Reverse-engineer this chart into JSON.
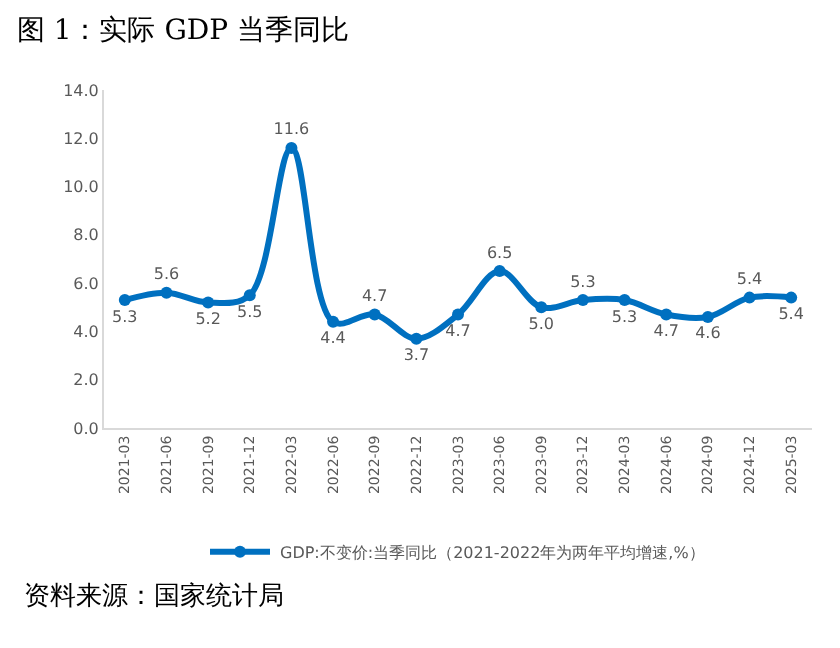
{
  "chart_data": {
    "type": "line",
    "title": "图 1：实际 GDP 当季同比",
    "categories": [
      "2021-03",
      "2021-06",
      "2021-09",
      "2021-12",
      "2022-03",
      "2022-06",
      "2022-09",
      "2022-12",
      "2023-03",
      "2023-06",
      "2023-09",
      "2023-12",
      "2024-03",
      "2024-06",
      "2024-09",
      "2024-12",
      "2025-03"
    ],
    "series": [
      {
        "name": "GDP:不变价:当季同比（2021-2022年为两年平均增速,%）",
        "color": "#0070c0",
        "values": [
          5.3,
          5.6,
          5.2,
          5.5,
          11.6,
          4.4,
          4.7,
          3.7,
          4.7,
          6.5,
          5.0,
          5.3,
          5.3,
          4.7,
          4.6,
          5.4,
          5.4
        ],
        "value_labels": [
          "5.3",
          "5.6",
          "5.2",
          "5.5",
          "11.6",
          "4.4",
          "4.7",
          "3.7",
          "4.7",
          "6.5",
          "5.0",
          "5.3",
          "5.3",
          "4.7",
          "4.6",
          "5.4",
          "5.4"
        ]
      }
    ],
    "ylim": [
      0,
      14
    ],
    "yticks": [
      {
        "value": 0,
        "label": "0.0"
      },
      {
        "value": 2,
        "label": "2.0"
      },
      {
        "value": 4,
        "label": "4.0"
      },
      {
        "value": 6,
        "label": "6.0"
      },
      {
        "value": 8,
        "label": "8.0"
      },
      {
        "value": 10,
        "label": "10.0"
      },
      {
        "value": 12,
        "label": "12.0"
      },
      {
        "value": 14,
        "label": "14.0"
      }
    ],
    "grid": false,
    "legend": "bottom",
    "marker": "circle",
    "line_style": "solid",
    "annotations": [
      "资料来源：国家统计局"
    ]
  }
}
